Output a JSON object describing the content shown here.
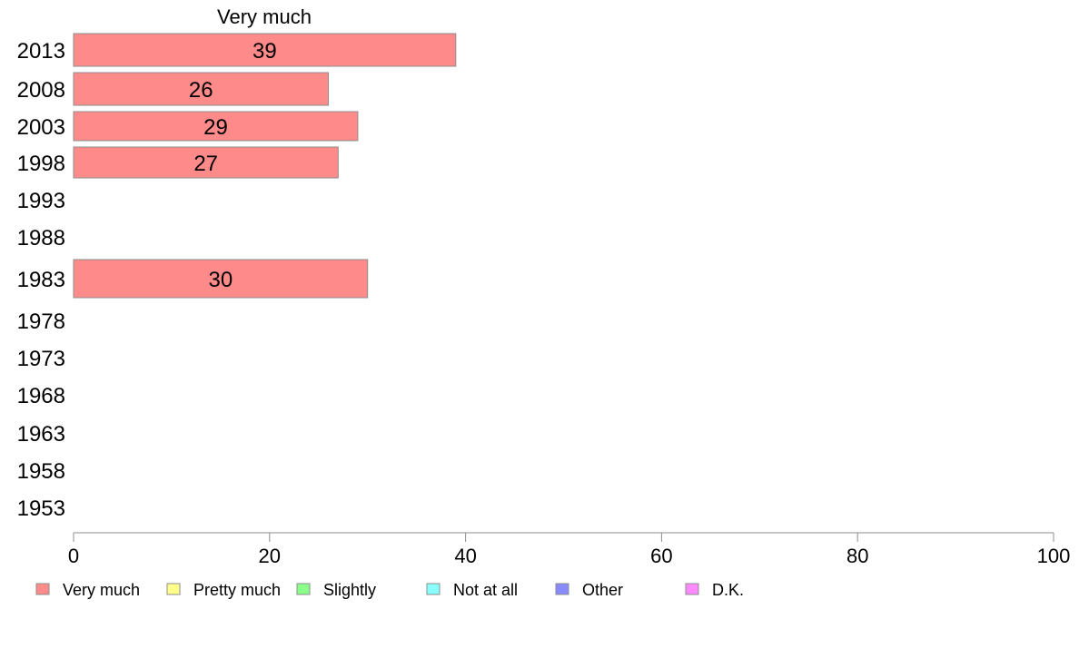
{
  "chart_data": {
    "type": "bar",
    "orientation": "horizontal",
    "stacked": true,
    "categories": [
      "2013",
      "2008",
      "2003",
      "1998",
      "1993",
      "1988",
      "1983",
      "1978",
      "1973",
      "1968",
      "1963",
      "1958",
      "1953"
    ],
    "series": [
      {
        "name": "Very much",
        "color": "#ff8a8a",
        "values": [
          39,
          26,
          29,
          27,
          null,
          null,
          30,
          null,
          null,
          null,
          null,
          null,
          null
        ]
      },
      {
        "name": "Pretty much",
        "color": "#ffff8a",
        "values": [
          null,
          null,
          null,
          null,
          null,
          null,
          null,
          null,
          null,
          null,
          null,
          null,
          null
        ]
      },
      {
        "name": "Slightly",
        "color": "#8aff8a",
        "values": [
          null,
          null,
          null,
          null,
          null,
          null,
          null,
          null,
          null,
          null,
          null,
          null,
          null
        ]
      },
      {
        "name": "Not at all",
        "color": "#8affff",
        "values": [
          null,
          null,
          null,
          null,
          null,
          null,
          null,
          null,
          null,
          null,
          null,
          null,
          null
        ]
      },
      {
        "name": "Other",
        "color": "#8a8aff",
        "values": [
          null,
          null,
          null,
          null,
          null,
          null,
          null,
          null,
          null,
          null,
          null,
          null,
          null
        ]
      },
      {
        "name": "D.K.",
        "color": "#ff8aff",
        "values": [
          null,
          null,
          null,
          null,
          null,
          null,
          null,
          null,
          null,
          null,
          null,
          null,
          null
        ]
      }
    ],
    "series_header": "Very much",
    "xlim": [
      0,
      100
    ],
    "xticks": [
      "0",
      "20",
      "40",
      "60",
      "80",
      "100"
    ],
    "grid": false,
    "legend_position": "bottom"
  }
}
